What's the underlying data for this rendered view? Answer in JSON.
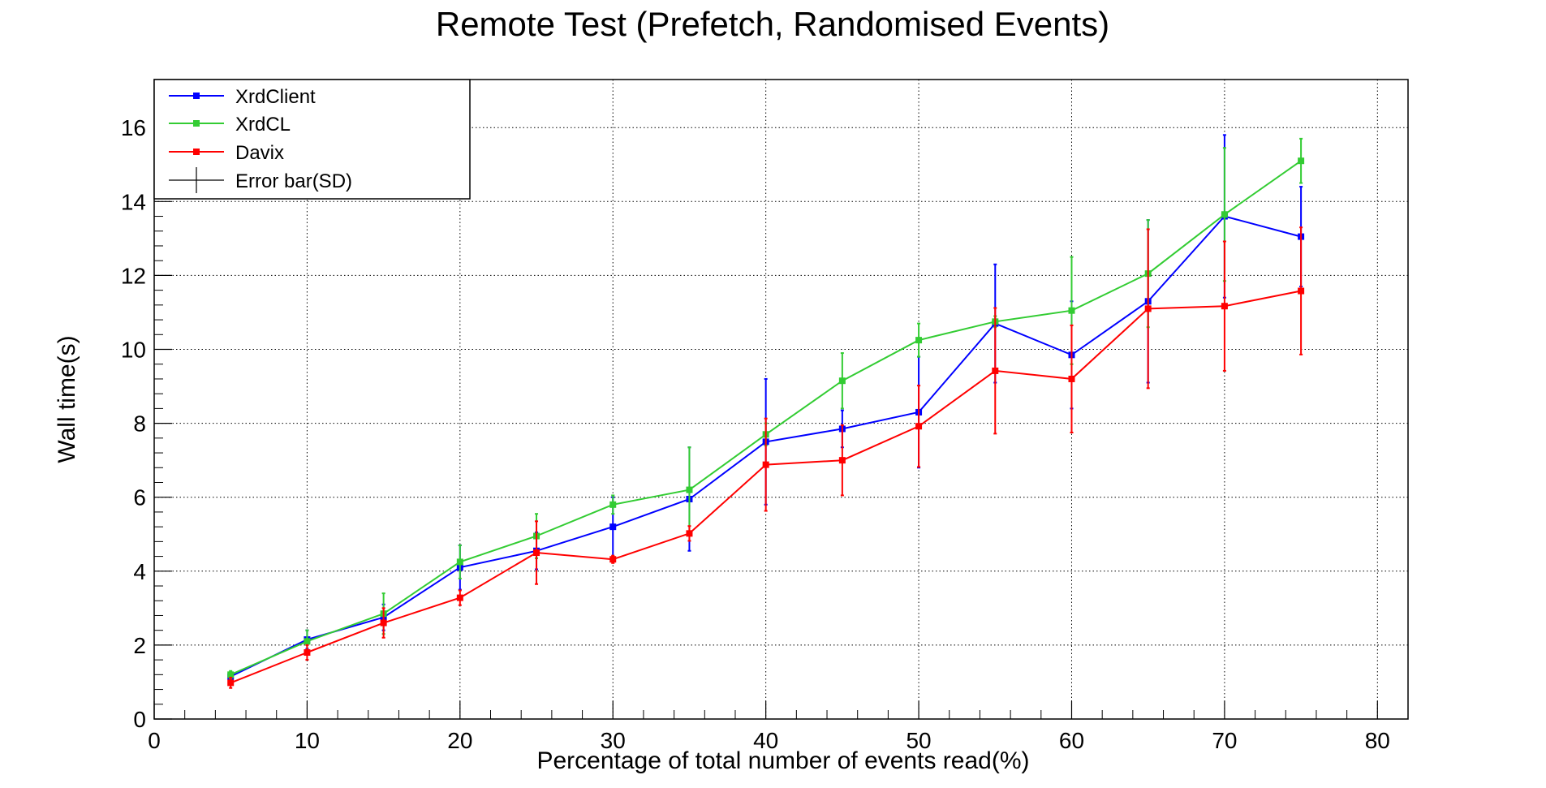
{
  "chart_data": {
    "type": "line",
    "title": "Remote Test (Prefetch, Randomised Events)",
    "xlabel": "Percentage of total number of events read(%)",
    "ylabel": "Wall time(s)",
    "xlim": [
      0,
      82
    ],
    "ylim": [
      0,
      17.3
    ],
    "xticks": [
      0,
      10,
      20,
      30,
      40,
      50,
      60,
      70,
      80
    ],
    "yticks": [
      0,
      2,
      4,
      6,
      8,
      10,
      12,
      14,
      16
    ],
    "grid": true,
    "legend_position": "top-left",
    "x": [
      5,
      10,
      15,
      20,
      25,
      30,
      35,
      40,
      45,
      50,
      55,
      60,
      65,
      70,
      75
    ],
    "series": [
      {
        "name": "XrdClient",
        "color": "#0000ff",
        "values": [
          1.15,
          2.15,
          2.75,
          4.1,
          4.55,
          5.2,
          5.95,
          7.5,
          7.85,
          8.3,
          10.7,
          9.85,
          11.3,
          13.6,
          13.05
        ],
        "errors": [
          0.1,
          0.25,
          0.35,
          0.6,
          0.5,
          0.8,
          1.4,
          1.7,
          0.5,
          1.5,
          1.6,
          1.45,
          2.2,
          2.2,
          1.35
        ]
      },
      {
        "name": "XrdCL",
        "color": "#33cc33",
        "values": [
          1.2,
          2.1,
          2.85,
          4.25,
          4.95,
          5.8,
          6.2,
          7.7,
          9.15,
          10.25,
          10.75,
          11.05,
          12.05,
          13.65,
          15.1
        ],
        "errors": [
          0.1,
          0.3,
          0.55,
          0.45,
          0.6,
          0.25,
          1.15,
          0.3,
          0.75,
          0.45,
          0.15,
          1.45,
          1.45,
          1.8,
          0.6
        ]
      },
      {
        "name": "Davix",
        "color": "#ff0000",
        "values": [
          0.98,
          1.8,
          2.6,
          3.28,
          4.5,
          4.32,
          5.02,
          6.88,
          7.0,
          7.92,
          9.42,
          9.2,
          11.1,
          11.17,
          11.58
        ],
        "errors": [
          0.14,
          0.2,
          0.4,
          0.2,
          0.85,
          0.1,
          0.2,
          1.25,
          0.95,
          1.1,
          1.7,
          1.45,
          2.15,
          1.75,
          1.72
        ]
      }
    ],
    "legend_items": [
      {
        "label": "XrdClient",
        "color": "#0000ff",
        "kind": "series"
      },
      {
        "label": "XrdCL",
        "color": "#33cc33",
        "kind": "series"
      },
      {
        "label": "Davix",
        "color": "#ff0000",
        "kind": "series"
      },
      {
        "label": "Error bar(SD)",
        "color": "#000000",
        "kind": "errorbar"
      }
    ]
  }
}
